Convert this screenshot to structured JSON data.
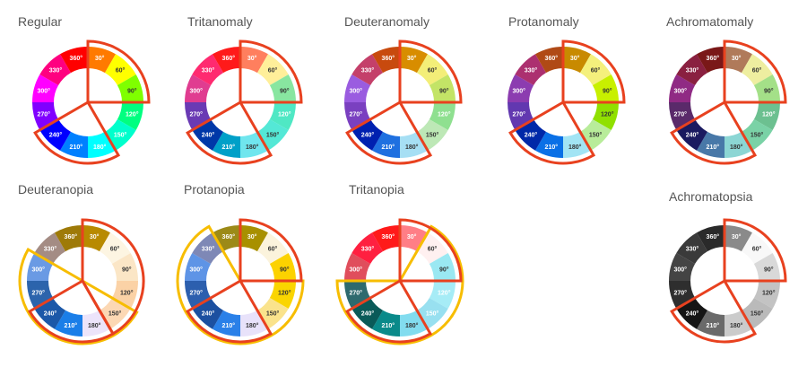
{
  "segment_labels": [
    "30°",
    "60°",
    "90°",
    "120°",
    "150°",
    "180°",
    "210°",
    "240°",
    "270°",
    "300°",
    "330°",
    "360°"
  ],
  "outline_colors": {
    "red": "#e8411f",
    "yellow": "#f7bd00"
  },
  "wheels": [
    {
      "title": "Regular",
      "colors": [
        "#ff7a00",
        "#ffff00",
        "#7fff00",
        "#00ff80",
        "#00ffcc",
        "#00ffff",
        "#0080ff",
        "#0000ff",
        "#8000ff",
        "#ff00ff",
        "#ff0080",
        "#ff0000"
      ],
      "label_colors": [
        "#fff",
        "#333",
        "#333",
        "#fff",
        "#fff",
        "#fff",
        "#fff",
        "#fff",
        "#fff",
        "#fff",
        "#fff",
        "#fff"
      ],
      "outlines": [
        {
          "color": "red",
          "segments": [
            "30°",
            "60°",
            "90°"
          ]
        },
        {
          "color": "red",
          "segments": [
            "180°",
            "210°",
            "240°"
          ]
        }
      ]
    },
    {
      "title": "Tritanomaly",
      "colors": [
        "#ff7f5e",
        "#ffef9a",
        "#88e6a0",
        "#4fe8c4",
        "#54e8d6",
        "#70e6ee",
        "#00a0c8",
        "#0038a8",
        "#6a3ab4",
        "#e03c90",
        "#ff2a70",
        "#ff1a1a"
      ],
      "label_colors": [
        "#fff",
        "#333",
        "#333",
        "#fff",
        "#333",
        "#333",
        "#fff",
        "#fff",
        "#fff",
        "#fff",
        "#fff",
        "#fff"
      ],
      "outlines": [
        {
          "color": "red",
          "segments": [
            "30°",
            "60°",
            "90°"
          ]
        },
        {
          "color": "red",
          "segments": [
            "180°",
            "210°",
            "240°"
          ]
        }
      ]
    },
    {
      "title": "Deuteranomaly",
      "colors": [
        "#d88d00",
        "#f3ee78",
        "#c3e466",
        "#8fe090",
        "#bde8b6",
        "#a6dff4",
        "#1f70e0",
        "#0020b0",
        "#7a40c0",
        "#9a5ce0",
        "#c4406a",
        "#c84a0e"
      ],
      "label_colors": [
        "#fff",
        "#333",
        "#333",
        "#fff",
        "#333",
        "#333",
        "#fff",
        "#fff",
        "#fff",
        "#fff",
        "#fff",
        "#fff"
      ],
      "outlines": [
        {
          "color": "red",
          "segments": [
            "30°",
            "60°",
            "90°"
          ]
        },
        {
          "color": "red",
          "segments": [
            "180°",
            "210°",
            "240°"
          ]
        }
      ]
    },
    {
      "title": "Protanomaly",
      "colors": [
        "#c88a00",
        "#f4f07c",
        "#c8f000",
        "#90e000",
        "#b8ec9a",
        "#a2e4f4",
        "#0a70e6",
        "#0028a8",
        "#6238b0",
        "#8c3cb0",
        "#ac3070",
        "#b04a16"
      ],
      "label_colors": [
        "#fff",
        "#333",
        "#333",
        "#333",
        "#333",
        "#333",
        "#fff",
        "#fff",
        "#fff",
        "#fff",
        "#fff",
        "#fff"
      ],
      "outlines": [
        {
          "color": "red",
          "segments": [
            "30°",
            "60°",
            "90°"
          ]
        },
        {
          "color": "red",
          "segments": [
            "180°",
            "210°",
            "240°"
          ]
        }
      ]
    },
    {
      "title": "Achromatomaly",
      "colors": [
        "#b07a5a",
        "#eeeea0",
        "#a4e088",
        "#6cc090",
        "#7ad2a6",
        "#8cd6d4",
        "#4878a8",
        "#1a1a60",
        "#5a2a6a",
        "#902a84",
        "#8a2040",
        "#7a1818"
      ],
      "label_colors": [
        "#fff",
        "#333",
        "#333",
        "#fff",
        "#333",
        "#333",
        "#fff",
        "#fff",
        "#fff",
        "#fff",
        "#fff",
        "#fff"
      ],
      "outlines": [
        {
          "color": "red",
          "segments": [
            "30°",
            "60°",
            "90°"
          ]
        },
        {
          "color": "red",
          "segments": [
            "180°",
            "210°",
            "240°"
          ]
        }
      ]
    },
    {
      "title": "Deuteranopia",
      "colors": [
        "#b88a00",
        "#fdf5e2",
        "#fbe6c6",
        "#fbd2a6",
        "#fcd8b4",
        "#ece4fa",
        "#1a7ee8",
        "#1c58a8",
        "#2c64ac",
        "#6a9ae4",
        "#a48c84",
        "#9e7a08"
      ],
      "label_colors": [
        "#fff",
        "#333",
        "#333",
        "#333",
        "#333",
        "#333",
        "#fff",
        "#fff",
        "#fff",
        "#fff",
        "#fff",
        "#fff"
      ],
      "outlines": [
        {
          "color": "red",
          "segments": [
            "30°",
            "60°",
            "90°",
            "120°",
            "150°"
          ]
        },
        {
          "color": "red",
          "segments": [
            "180°",
            "210°",
            "240°"
          ]
        },
        {
          "color": "yellow",
          "segments": [
            "150°",
            "180°",
            "210°",
            "240°",
            "270°",
            "300°"
          ]
        }
      ]
    },
    {
      "title": "Protanopia",
      "colors": [
        "#a89000",
        "#fbf3dc",
        "#fcd200",
        "#fad500",
        "#fae38c",
        "#e8e2fa",
        "#2a80e8",
        "#1c50a0",
        "#2c5fae",
        "#5e94e6",
        "#7e88b6",
        "#9c8a18"
      ],
      "label_colors": [
        "#fff",
        "#333",
        "#333",
        "#333",
        "#333",
        "#333",
        "#fff",
        "#fff",
        "#fff",
        "#fff",
        "#fff",
        "#fff"
      ],
      "outlines": [
        {
          "color": "red",
          "segments": [
            "30°",
            "60°",
            "90°"
          ]
        },
        {
          "color": "red",
          "segments": [
            "180°",
            "210°",
            "240°"
          ]
        },
        {
          "color": "yellow",
          "segments": [
            "120°",
            "150°",
            "180°",
            "210°",
            "240°",
            "270°",
            "300°",
            "330°"
          ]
        }
      ]
    },
    {
      "title": "Tritanopia",
      "colors": [
        "#ff7e86",
        "#fff0f0",
        "#9ae8f2",
        "#a6ecf6",
        "#98e0f0",
        "#82dcef",
        "#0a8a8a",
        "#0a5a58",
        "#2e6a6e",
        "#e04e5c",
        "#ff2040",
        "#ff1a1a"
      ],
      "label_colors": [
        "#fff",
        "#333",
        "#333",
        "#fff",
        "#fff",
        "#333",
        "#fff",
        "#fff",
        "#fff",
        "#fff",
        "#fff",
        "#fff"
      ],
      "outlines": [
        {
          "color": "red",
          "segments": [
            "30°",
            "60°",
            "90°"
          ]
        },
        {
          "color": "red",
          "segments": [
            "180°",
            "210°",
            "240°"
          ]
        },
        {
          "color": "yellow",
          "segments": [
            "60°",
            "90°",
            "120°",
            "150°",
            "180°",
            "210°",
            "240°",
            "270°"
          ]
        }
      ]
    },
    {
      "title": "Achromatopsia",
      "colors": [
        "#8a8a8a",
        "#f8f8f8",
        "#d9d9d9",
        "#c3c3c3",
        "#bababa",
        "#cbcbcb",
        "#6a6a6a",
        "#151515",
        "#2e2e2e",
        "#444444",
        "#3a3a3a",
        "#2a2a2a"
      ],
      "label_colors": [
        "#fff",
        "#333",
        "#333",
        "#333",
        "#333",
        "#333",
        "#fff",
        "#fff",
        "#fff",
        "#fff",
        "#fff",
        "#fff"
      ],
      "outlines": [
        {
          "color": "red",
          "segments": [
            "30°",
            "60°",
            "90°"
          ]
        },
        {
          "color": "red",
          "segments": [
            "180°",
            "210°",
            "240°"
          ]
        }
      ]
    }
  ]
}
